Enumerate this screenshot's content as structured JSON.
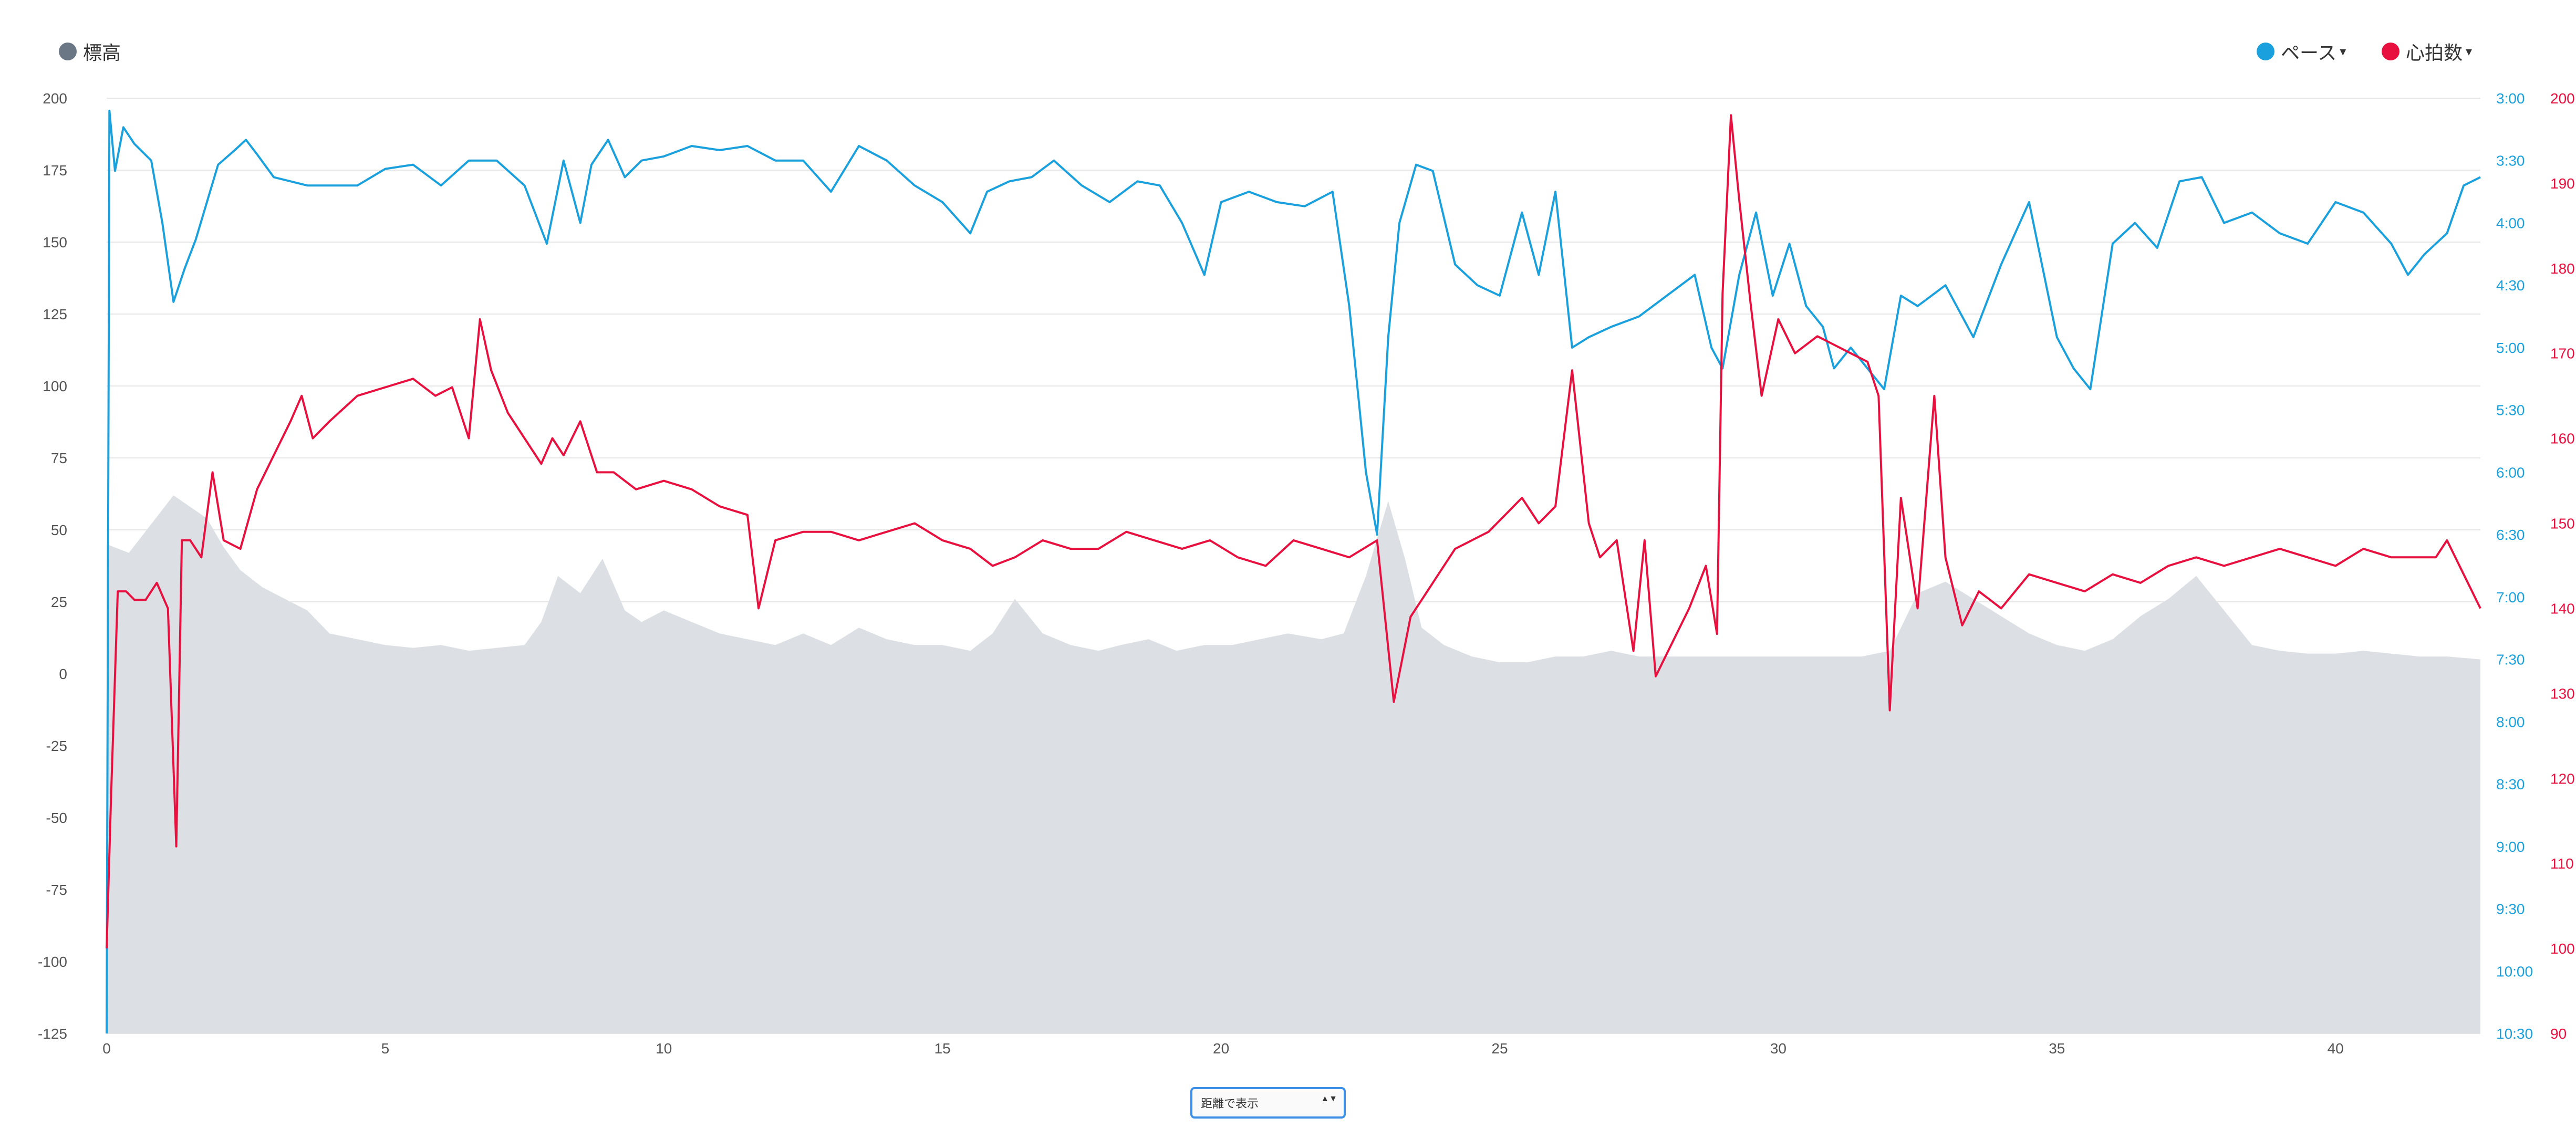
{
  "legend": {
    "elevation": {
      "label": "標高",
      "color": "#6b7785"
    },
    "pace": {
      "label": "ペース",
      "color": "#1aa0dc",
      "caret": "▾"
    },
    "heart_rate": {
      "label": "心拍数",
      "color": "#e8103f",
      "caret": "▾"
    }
  },
  "view_select": {
    "label": "距離で表示",
    "arrows": "▲▼"
  },
  "chart_data": {
    "type": "line",
    "x": {
      "min": 0,
      "max": 42.6,
      "ticks": [
        0,
        5,
        10,
        15,
        20,
        25,
        30,
        35,
        40
      ]
    },
    "y_left": {
      "min": -125,
      "max": 200,
      "ticks": [
        200,
        175,
        150,
        125,
        100,
        75,
        50,
        25,
        0,
        -25,
        -50,
        -75,
        -100,
        -125
      ]
    },
    "y_right_pace": {
      "ticks": [
        "3:00",
        "3:30",
        "4:00",
        "4:30",
        "5:00",
        "5:30",
        "6:00",
        "6:30",
        "7:00",
        "7:30",
        "8:00",
        "8:30",
        "9:00",
        "9:30",
        "10:00",
        "10:30"
      ],
      "min_sec_per_km": 180,
      "max_sec_per_km": 630
    },
    "y_right_hr": {
      "min": 90,
      "max": 200,
      "ticks": [
        200,
        190,
        180,
        170,
        160,
        150,
        140,
        130,
        120,
        110,
        100,
        90
      ]
    },
    "grid": true,
    "legend_position": "top",
    "series": [
      {
        "name": "標高",
        "type": "area",
        "axis": "left",
        "color": "#dce0e4",
        "x": [
          0,
          0.4,
          0.8,
          1.2,
          1.5,
          1.8,
          2.1,
          2.4,
          2.8,
          3.2,
          3.6,
          4.0,
          4.5,
          5.0,
          5.5,
          6.0,
          6.5,
          7.0,
          7.5,
          7.8,
          8.1,
          8.5,
          8.9,
          9.3,
          9.6,
          10.0,
          10.5,
          11.0,
          11.5,
          12.0,
          12.5,
          13.0,
          13.5,
          14.0,
          14.5,
          15.0,
          15.5,
          15.9,
          16.3,
          16.8,
          17.3,
          17.8,
          18.2,
          18.7,
          19.2,
          19.7,
          20.2,
          20.7,
          21.2,
          21.8,
          22.2,
          22.6,
          23.0,
          23.3,
          23.6,
          24.0,
          24.5,
          25.0,
          25.5,
          26.0,
          26.5,
          27.0,
          27.5,
          28.0,
          28.5,
          29.0,
          29.5,
          30.0,
          30.5,
          31.0,
          31.5,
          32.0,
          32.5,
          33.0,
          33.5,
          34.0,
          34.5,
          35.0,
          35.5,
          36.0,
          36.5,
          37.0,
          37.5,
          38.0,
          38.5,
          39.0,
          39.5,
          40.0,
          40.5,
          41.0,
          41.5,
          42.0,
          42.6
        ],
        "values": [
          45,
          42,
          52,
          62,
          58,
          54,
          44,
          36,
          30,
          26,
          22,
          14,
          12,
          10,
          9,
          10,
          8,
          9,
          10,
          18,
          34,
          28,
          40,
          22,
          18,
          22,
          18,
          14,
          12,
          10,
          14,
          10,
          16,
          12,
          10,
          10,
          8,
          14,
          26,
          14,
          10,
          8,
          10,
          12,
          8,
          10,
          10,
          12,
          14,
          12,
          14,
          34,
          60,
          40,
          16,
          10,
          6,
          4,
          4,
          6,
          6,
          8,
          6,
          6,
          6,
          6,
          6,
          6,
          6,
          6,
          6,
          8,
          28,
          32,
          26,
          20,
          14,
          10,
          8,
          12,
          20,
          26,
          34,
          22,
          10,
          8,
          7,
          7,
          8,
          7,
          6,
          6,
          5
        ]
      },
      {
        "name": "ペース",
        "type": "line",
        "axis": "right_pace",
        "color": "#1aa0dc",
        "x": [
          0,
          0.05,
          0.15,
          0.3,
          0.5,
          0.8,
          1.0,
          1.2,
          1.4,
          1.6,
          1.8,
          2.0,
          2.3,
          2.5,
          2.7,
          3.0,
          3.3,
          3.6,
          4.0,
          4.5,
          5.0,
          5.5,
          6.0,
          6.5,
          7.0,
          7.5,
          7.9,
          8.2,
          8.5,
          8.7,
          9.0,
          9.3,
          9.6,
          10.0,
          10.5,
          11.0,
          11.5,
          12.0,
          12.5,
          13.0,
          13.5,
          14.0,
          14.5,
          15.0,
          15.5,
          15.8,
          16.2,
          16.6,
          17.0,
          17.5,
          18.0,
          18.5,
          18.9,
          19.3,
          19.7,
          20.0,
          20.5,
          21.0,
          21.5,
          22.0,
          22.3,
          22.6,
          22.8,
          23.0,
          23.2,
          23.5,
          23.8,
          24.2,
          24.6,
          25.0,
          25.4,
          25.7,
          26.0,
          26.3,
          26.6,
          27.0,
          27.5,
          28.0,
          28.5,
          28.8,
          29.0,
          29.3,
          29.6,
          29.9,
          30.2,
          30.5,
          30.8,
          31.0,
          31.3,
          31.6,
          31.9,
          32.2,
          32.5,
          33.0,
          33.5,
          34.0,
          34.5,
          35.0,
          35.3,
          35.6,
          36.0,
          36.4,
          36.8,
          37.2,
          37.6,
          38.0,
          38.5,
          39.0,
          39.5,
          40.0,
          40.5,
          41.0,
          41.3,
          41.6,
          42.0,
          42.3,
          42.6
        ],
        "values": [
          630,
          186,
          215,
          194,
          202,
          210,
          240,
          278,
          262,
          248,
          230,
          212,
          205,
          200,
          207,
          218,
          220,
          222,
          222,
          222,
          214,
          212,
          222,
          210,
          210,
          222,
          250,
          210,
          240,
          212,
          200,
          218,
          210,
          208,
          203,
          205,
          203,
          210,
          210,
          225,
          203,
          210,
          222,
          230,
          245,
          225,
          220,
          218,
          210,
          222,
          230,
          220,
          222,
          240,
          265,
          230,
          225,
          230,
          232,
          225,
          280,
          360,
          390,
          295,
          240,
          212,
          215,
          260,
          270,
          275,
          235,
          265,
          225,
          300,
          295,
          290,
          285,
          275,
          265,
          300,
          310,
          265,
          235,
          275,
          250,
          280,
          290,
          310,
          300,
          310,
          320,
          275,
          280,
          270,
          295,
          260,
          230,
          295,
          310,
          320,
          250,
          240,
          252,
          220,
          218,
          240,
          235,
          245,
          250,
          230,
          235,
          250,
          265,
          255,
          245,
          222,
          218
        ]
      },
      {
        "name": "心拍数",
        "type": "line",
        "axis": "right_hr",
        "color": "#e8103f",
        "x": [
          0,
          0.08,
          0.2,
          0.35,
          0.5,
          0.7,
          0.9,
          1.1,
          1.25,
          1.35,
          1.5,
          1.7,
          1.9,
          2.1,
          2.4,
          2.7,
          3.0,
          3.3,
          3.5,
          3.7,
          4.0,
          4.5,
          5.0,
          5.5,
          5.9,
          6.2,
          6.5,
          6.7,
          6.9,
          7.2,
          7.5,
          7.8,
          8.0,
          8.2,
          8.5,
          8.8,
          9.1,
          9.5,
          10.0,
          10.5,
          11.0,
          11.5,
          11.7,
          12.0,
          12.5,
          13.0,
          13.5,
          14.0,
          14.5,
          15.0,
          15.5,
          15.9,
          16.3,
          16.8,
          17.3,
          17.8,
          18.3,
          18.8,
          19.3,
          19.8,
          20.3,
          20.8,
          21.3,
          21.8,
          22.3,
          22.8,
          23.1,
          23.4,
          23.6,
          23.9,
          24.2,
          24.5,
          24.8,
          25.1,
          25.4,
          25.7,
          26.0,
          26.3,
          26.6,
          26.8,
          27.1,
          27.4,
          27.6,
          27.8,
          28.1,
          28.4,
          28.7,
          28.9,
          29.0,
          29.15,
          29.3,
          29.5,
          29.7,
          30.0,
          30.3,
          30.7,
          31.0,
          31.3,
          31.6,
          31.8,
          32.0,
          32.2,
          32.5,
          32.8,
          33.0,
          33.3,
          33.6,
          34.0,
          34.5,
          35.0,
          35.5,
          36.0,
          36.5,
          37.0,
          37.5,
          38.0,
          38.5,
          39.0,
          39.5,
          40.0,
          40.5,
          41.0,
          41.5,
          41.8,
          42.0,
          42.3,
          42.6
        ],
        "values": [
          100,
          118,
          142,
          142,
          141,
          141,
          143,
          140,
          112,
          148,
          148,
          146,
          156,
          148,
          147,
          154,
          158,
          162,
          165,
          160,
          162,
          165,
          166,
          167,
          165,
          166,
          160,
          174,
          168,
          163,
          160,
          157,
          160,
          158,
          162,
          156,
          156,
          154,
          155,
          154,
          152,
          151,
          140,
          148,
          149,
          149,
          148,
          149,
          150,
          148,
          147,
          145,
          146,
          148,
          147,
          147,
          149,
          148,
          147,
          148,
          146,
          145,
          148,
          147,
          146,
          148,
          129,
          139,
          141,
          144,
          147,
          148,
          149,
          151,
          153,
          150,
          152,
          168,
          150,
          146,
          148,
          135,
          148,
          132,
          136,
          140,
          145,
          137,
          177,
          198,
          188,
          176,
          165,
          174,
          170,
          172,
          171,
          170,
          169,
          165,
          128,
          153,
          140,
          165,
          146,
          138,
          142,
          140,
          144,
          143,
          142,
          144,
          143,
          145,
          146,
          145,
          146,
          147,
          146,
          145,
          147,
          146,
          146,
          146,
          148,
          144,
          140
        ]
      }
    ]
  }
}
